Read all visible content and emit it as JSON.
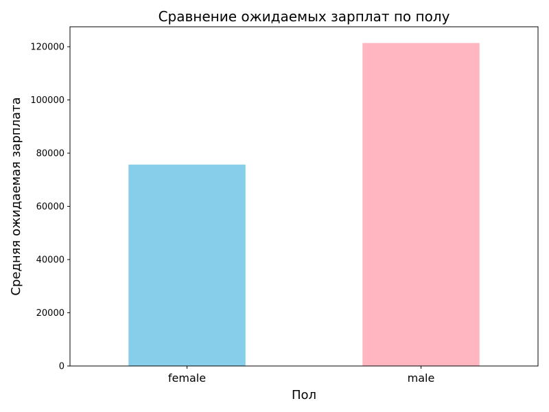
{
  "chart_data": {
    "type": "bar",
    "title": "Сравнение ожидаемых зарплат по полу",
    "xlabel": "Пол",
    "ylabel": "Средняя ожидаемая зарплата",
    "categories": [
      "female",
      "male"
    ],
    "values": [
      75700,
      121400
    ],
    "colors": [
      "#87ceeb",
      "#ffb6c1"
    ],
    "ylim": [
      0,
      127500
    ],
    "yticks": [
      0,
      20000,
      40000,
      60000,
      80000,
      100000,
      120000
    ],
    "grid": false,
    "legend": "none"
  }
}
